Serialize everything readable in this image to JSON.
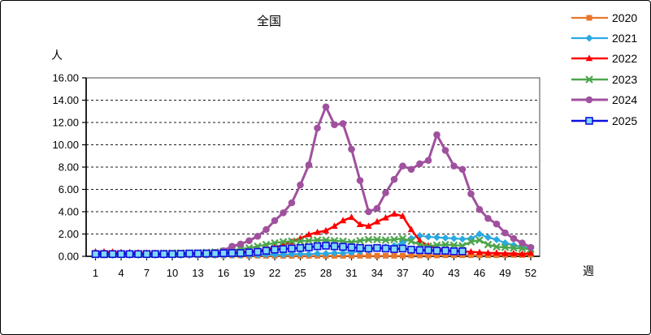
{
  "window": {
    "background": "#FFFFFF",
    "border_color": "#000000"
  },
  "chart_data": {
    "type": "line",
    "title": "全国",
    "ylabel": "人",
    "xlabel": "週",
    "x_range": [
      1,
      52
    ],
    "x_ticks": [
      1,
      4,
      7,
      10,
      13,
      16,
      19,
      22,
      25,
      28,
      31,
      34,
      37,
      40,
      43,
      46,
      49,
      52
    ],
    "ylim": [
      0,
      16
    ],
    "y_tick_step": 2,
    "y_tick_decimals": 2,
    "grid": "horizontal-dashed",
    "legend_position": "right-outside",
    "series": [
      {
        "name": "2020",
        "color": "#E8762C",
        "marker": "square",
        "values": [
          0.3,
          0.3,
          0.3,
          0.28,
          0.25,
          0.22,
          0.2,
          0.18,
          0.15,
          0.15,
          0.12,
          0.12,
          0.1,
          0.1,
          0.1,
          0.08,
          0.08,
          0.08,
          0.06,
          0.06,
          0.05,
          0.05,
          0.05,
          0.05,
          0.05,
          0.05,
          0.05,
          0.05,
          0.05,
          0.05,
          0.05,
          0.05,
          0.05,
          0.05,
          0.05,
          0.05,
          0.05,
          0.08,
          0.08,
          0.08,
          0.08,
          0.1,
          0.1,
          0.1,
          0.1,
          0.1,
          0.1,
          0.1,
          0.12,
          0.12,
          0.12,
          0.15
        ]
      },
      {
        "name": "2021",
        "color": "#29A9E1",
        "marker": "diamond",
        "values": [
          0.1,
          0.1,
          0.1,
          0.1,
          0.1,
          0.1,
          0.1,
          0.1,
          0.1,
          0.1,
          0.1,
          0.1,
          0.1,
          0.1,
          0.1,
          0.1,
          0.1,
          0.1,
          0.12,
          0.12,
          0.15,
          0.15,
          0.15,
          0.2,
          0.2,
          0.2,
          0.25,
          0.25,
          0.3,
          0.3,
          0.35,
          0.45,
          0.55,
          0.7,
          0.85,
          0.95,
          1.2,
          1.6,
          1.85,
          1.75,
          1.7,
          1.65,
          1.6,
          1.55,
          1.6,
          2.0,
          1.7,
          1.5,
          1.2,
          1.0,
          0.85,
          0.7
        ]
      },
      {
        "name": "2022",
        "color": "#FF0000",
        "marker": "triangle",
        "values": [
          0.4,
          0.4,
          0.38,
          0.35,
          0.35,
          0.32,
          0.3,
          0.3,
          0.3,
          0.28,
          0.28,
          0.28,
          0.3,
          0.3,
          0.3,
          0.32,
          0.35,
          0.4,
          0.45,
          0.5,
          0.6,
          0.8,
          1.0,
          1.3,
          1.6,
          1.95,
          2.15,
          2.3,
          2.7,
          3.2,
          3.5,
          2.85,
          2.7,
          3.1,
          3.45,
          3.8,
          3.6,
          2.4,
          1.4,
          0.95,
          0.7,
          0.55,
          0.5,
          0.45,
          0.4,
          0.35,
          0.3,
          0.3,
          0.25,
          0.25,
          0.2,
          0.3
        ]
      },
      {
        "name": "2023",
        "color": "#4DA54D",
        "marker": "x",
        "values": [
          0.15,
          0.15,
          0.18,
          0.2,
          0.2,
          0.22,
          0.25,
          0.25,
          0.28,
          0.3,
          0.3,
          0.3,
          0.32,
          0.35,
          0.38,
          0.45,
          0.55,
          0.65,
          0.75,
          0.9,
          1.05,
          1.2,
          1.3,
          1.35,
          1.35,
          1.4,
          1.45,
          1.45,
          1.4,
          1.35,
          1.25,
          1.4,
          1.5,
          1.5,
          1.45,
          1.5,
          1.6,
          1.35,
          1.05,
          0.9,
          1.0,
          1.05,
          1.0,
          0.95,
          1.3,
          1.45,
          1.05,
          0.85,
          0.8,
          0.75,
          0.7,
          0.65
        ]
      },
      {
        "name": "2024",
        "color": "#A0519E",
        "marker": "circle",
        "values": [
          0.2,
          0.2,
          0.2,
          0.2,
          0.2,
          0.2,
          0.2,
          0.2,
          0.2,
          0.2,
          0.25,
          0.25,
          0.3,
          0.3,
          0.35,
          0.5,
          0.9,
          1.1,
          1.4,
          1.8,
          2.4,
          3.2,
          3.9,
          4.8,
          6.4,
          8.2,
          11.5,
          13.4,
          11.8,
          11.9,
          9.6,
          6.8,
          4.0,
          4.3,
          5.7,
          6.9,
          8.1,
          7.8,
          8.3,
          8.6,
          10.9,
          9.5,
          8.1,
          7.8,
          5.6,
          4.2,
          3.4,
          2.9,
          2.1,
          1.6,
          1.2,
          0.8
        ]
      },
      {
        "name": "2025",
        "color": "#0F0FE0",
        "marker": "open-square",
        "marker_fill": "#7FD9F5",
        "values": [
          0.2,
          0.2,
          0.2,
          0.2,
          0.2,
          0.2,
          0.2,
          0.2,
          0.2,
          0.2,
          0.22,
          0.25,
          0.25,
          0.25,
          0.25,
          0.28,
          0.3,
          0.3,
          0.35,
          0.4,
          0.5,
          0.6,
          0.65,
          0.7,
          0.75,
          0.8,
          0.9,
          0.95,
          0.9,
          0.85,
          0.8,
          0.75,
          0.7,
          0.75,
          0.7,
          0.65,
          0.7,
          0.6,
          0.55,
          0.55,
          0.5,
          0.5,
          0.45,
          0.45
        ]
      }
    ]
  }
}
